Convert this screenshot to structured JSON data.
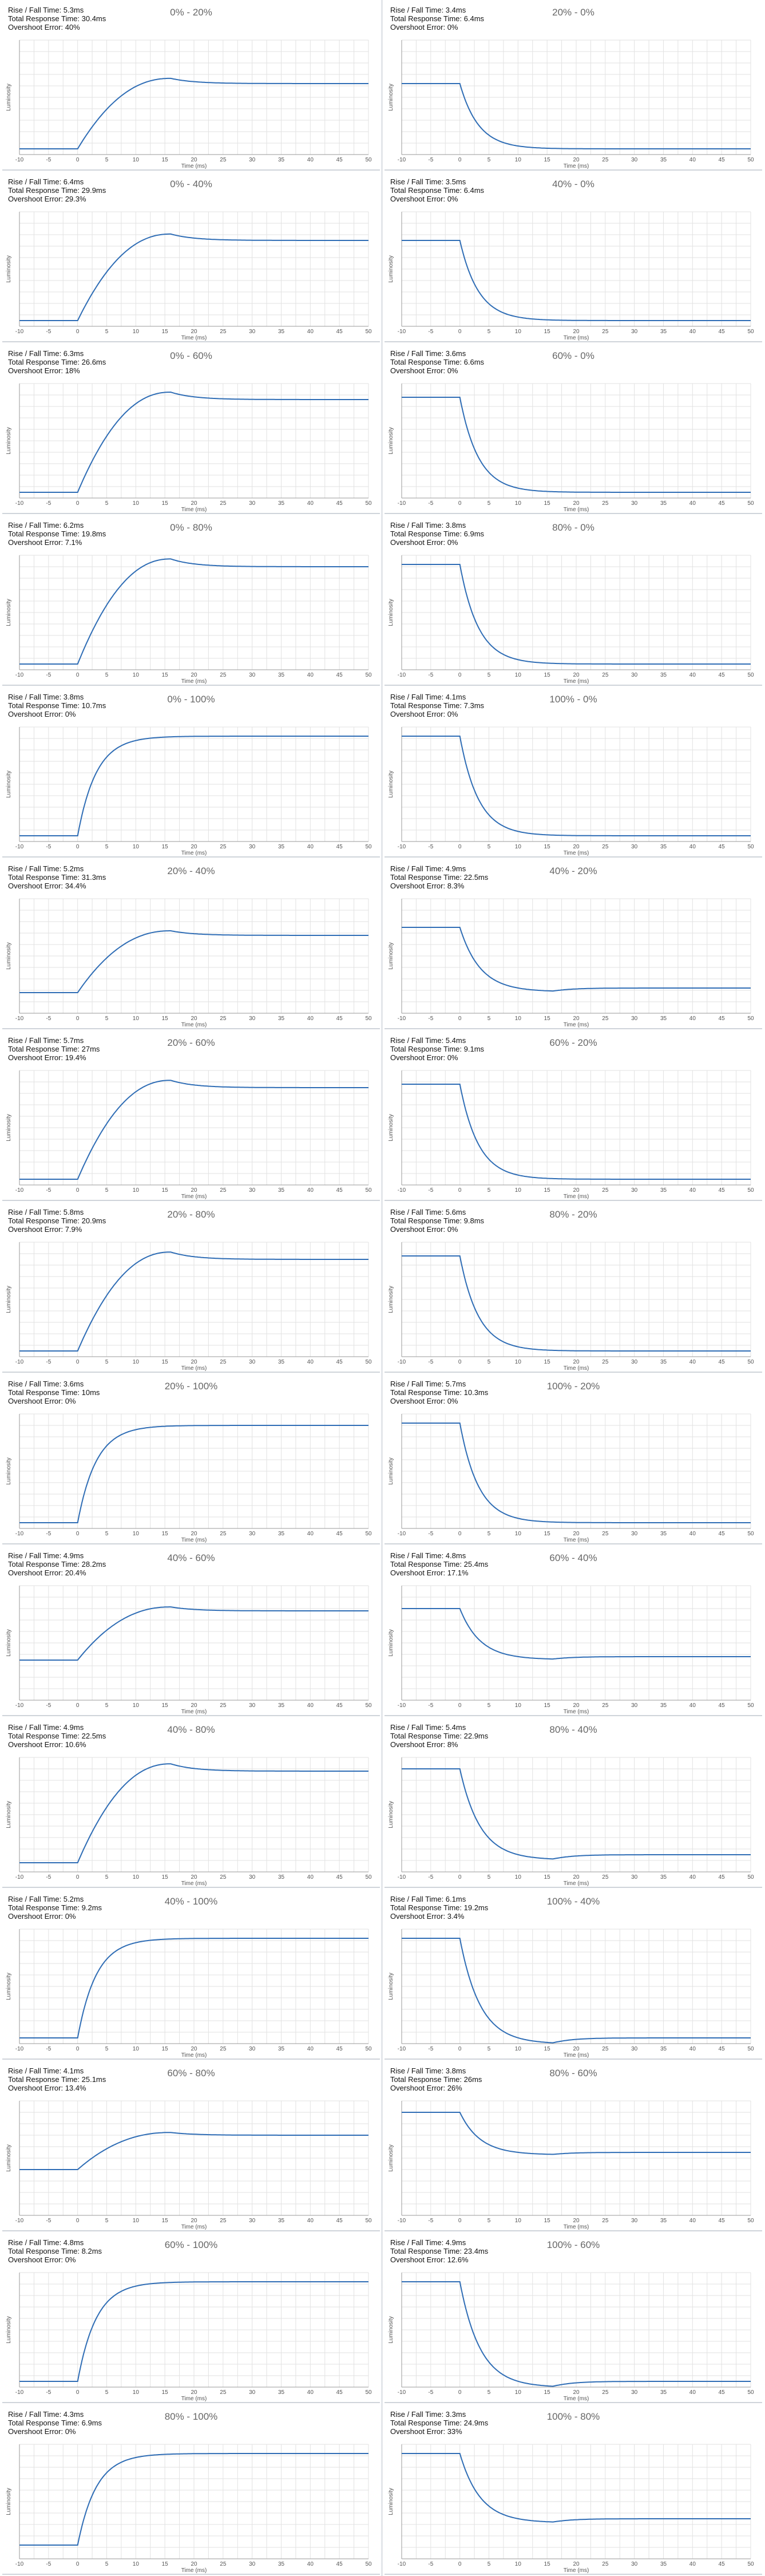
{
  "labels": {
    "rise_prefix": "Rise / Fall Time: ",
    "total_prefix": "Total Response Time: ",
    "overshoot_prefix": "Overshoot Error: "
  },
  "colors": {
    "line": "#2f6db5",
    "grid": "#e2e2e2",
    "axis": "#999999"
  },
  "chart_data": [
    {
      "type": "line",
      "title": "0% - 20%",
      "rise": "5.3ms",
      "total": "30.4ms",
      "overshoot": "40%",
      "start": 5,
      "end": 62,
      "peak": "overshoot-rise",
      "xlabel": "Time (ms)",
      "ylabel": "Luminosity",
      "x_ticks": [
        -10,
        -5,
        0,
        5,
        10,
        15,
        20,
        25,
        30,
        35,
        40,
        45,
        50
      ]
    },
    {
      "type": "line",
      "title": "20% - 0%",
      "rise": "3.4ms",
      "total": "6.4ms",
      "overshoot": "0%",
      "start": 62,
      "end": 5,
      "peak": "none",
      "xlabel": "Time (ms)",
      "ylabel": "Luminosity",
      "x_ticks": [
        -10,
        -5,
        0,
        5,
        10,
        15,
        20,
        25,
        30,
        35,
        40,
        45,
        50
      ]
    },
    {
      "type": "line",
      "title": "0% - 40%",
      "rise": "6.4ms",
      "total": "29.9ms",
      "overshoot": "29.3%",
      "start": 5,
      "end": 75,
      "peak": "overshoot-rise",
      "xlabel": "Time (ms)",
      "ylabel": "Luminosity",
      "x_ticks": [
        -10,
        -5,
        0,
        5,
        10,
        15,
        20,
        25,
        30,
        35,
        40,
        45,
        50
      ]
    },
    {
      "type": "line",
      "title": "40% - 0%",
      "rise": "3.5ms",
      "total": "6.4ms",
      "overshoot": "0%",
      "start": 75,
      "end": 5,
      "peak": "none",
      "xlabel": "Time (ms)",
      "ylabel": "Luminosity",
      "x_ticks": [
        -10,
        -5,
        0,
        5,
        10,
        15,
        20,
        25,
        30,
        35,
        40,
        45,
        50
      ]
    },
    {
      "type": "line",
      "title": "0% - 60%",
      "rise": "6.3ms",
      "total": "26.6ms",
      "overshoot": "18%",
      "start": 5,
      "end": 86,
      "peak": "overshoot-rise",
      "xlabel": "Time (ms)",
      "ylabel": "Luminosity",
      "x_ticks": [
        -10,
        -5,
        0,
        5,
        10,
        15,
        20,
        25,
        30,
        35,
        40,
        45,
        50
      ]
    },
    {
      "type": "line",
      "title": "60% - 0%",
      "rise": "3.6ms",
      "total": "6.6ms",
      "overshoot": "0%",
      "start": 88,
      "end": 5,
      "peak": "none",
      "xlabel": "Time (ms)",
      "ylabel": "Luminosity",
      "x_ticks": [
        -10,
        -5,
        0,
        5,
        10,
        15,
        20,
        25,
        30,
        35,
        40,
        45,
        50
      ]
    },
    {
      "type": "line",
      "title": "0% - 80%",
      "rise": "6.2ms",
      "total": "19.8ms",
      "overshoot": "7.1%",
      "start": 5,
      "end": 90,
      "peak": "overshoot-rise",
      "xlabel": "Time (ms)",
      "ylabel": "Luminosity",
      "x_ticks": [
        -10,
        -5,
        0,
        5,
        10,
        15,
        20,
        25,
        30,
        35,
        40,
        45,
        50
      ]
    },
    {
      "type": "line",
      "title": "80% - 0%",
      "rise": "3.8ms",
      "total": "6.9ms",
      "overshoot": "0%",
      "start": 92,
      "end": 5,
      "peak": "none",
      "xlabel": "Time (ms)",
      "ylabel": "Luminosity",
      "x_ticks": [
        -10,
        -5,
        0,
        5,
        10,
        15,
        20,
        25,
        30,
        35,
        40,
        45,
        50
      ]
    },
    {
      "type": "line",
      "title": "0% - 100%",
      "rise": "3.8ms",
      "total": "10.7ms",
      "overshoot": "0%",
      "start": 5,
      "end": 92,
      "peak": "none",
      "xlabel": "Time (ms)",
      "ylabel": "Luminosity",
      "x_ticks": [
        -10,
        -5,
        0,
        5,
        10,
        15,
        20,
        25,
        30,
        35,
        40,
        45,
        50
      ]
    },
    {
      "type": "line",
      "title": "100% - 0%",
      "rise": "4.1ms",
      "total": "7.3ms",
      "overshoot": "0%",
      "start": 92,
      "end": 5,
      "peak": "none",
      "xlabel": "Time (ms)",
      "ylabel": "Luminosity",
      "x_ticks": [
        -10,
        -5,
        0,
        5,
        10,
        15,
        20,
        25,
        30,
        35,
        40,
        45,
        50
      ]
    },
    {
      "type": "line",
      "title": "20% - 40%",
      "rise": "5.2ms",
      "total": "31.3ms",
      "overshoot": "34.4%",
      "start": 18,
      "end": 68,
      "peak": "overshoot-rise",
      "xlabel": "Time (ms)",
      "ylabel": "Luminosity",
      "x_ticks": [
        -10,
        -5,
        0,
        5,
        10,
        15,
        20,
        25,
        30,
        35,
        40,
        45,
        50
      ]
    },
    {
      "type": "line",
      "title": "40% - 20%",
      "rise": "4.9ms",
      "total": "22.5ms",
      "overshoot": "8.3%",
      "start": 75,
      "end": 22,
      "peak": "undershoot-fall",
      "xlabel": "Time (ms)",
      "ylabel": "Luminosity",
      "x_ticks": [
        -10,
        -5,
        0,
        5,
        10,
        15,
        20,
        25,
        30,
        35,
        40,
        45,
        50
      ]
    },
    {
      "type": "line",
      "title": "20% - 60%",
      "rise": "5.7ms",
      "total": "27ms",
      "overshoot": "19.4%",
      "start": 5,
      "end": 85,
      "peak": "overshoot-rise",
      "xlabel": "Time (ms)",
      "ylabel": "Luminosity",
      "x_ticks": [
        -10,
        -5,
        0,
        5,
        10,
        15,
        20,
        25,
        30,
        35,
        40,
        45,
        50
      ]
    },
    {
      "type": "line",
      "title": "60% - 20%",
      "rise": "5.4ms",
      "total": "9.1ms",
      "overshoot": "0%",
      "start": 88,
      "end": 5,
      "peak": "none",
      "xlabel": "Time (ms)",
      "ylabel": "Luminosity",
      "x_ticks": [
        -10,
        -5,
        0,
        5,
        10,
        15,
        20,
        25,
        30,
        35,
        40,
        45,
        50
      ]
    },
    {
      "type": "line",
      "title": "20% - 80%",
      "rise": "5.8ms",
      "total": "20.9ms",
      "overshoot": "7.9%",
      "start": 5,
      "end": 85,
      "peak": "overshoot-rise",
      "xlabel": "Time (ms)",
      "ylabel": "Luminosity",
      "x_ticks": [
        -10,
        -5,
        0,
        5,
        10,
        15,
        20,
        25,
        30,
        35,
        40,
        45,
        50
      ]
    },
    {
      "type": "line",
      "title": "80% - 20%",
      "rise": "5.6ms",
      "total": "9.8ms",
      "overshoot": "0%",
      "start": 88,
      "end": 5,
      "peak": "none",
      "xlabel": "Time (ms)",
      "ylabel": "Luminosity",
      "x_ticks": [
        -10,
        -5,
        0,
        5,
        10,
        15,
        20,
        25,
        30,
        35,
        40,
        45,
        50
      ]
    },
    {
      "type": "line",
      "title": "20% - 100%",
      "rise": "3.6ms",
      "total": "10ms",
      "overshoot": "0%",
      "start": 5,
      "end": 90,
      "peak": "none",
      "xlabel": "Time (ms)",
      "ylabel": "Luminosity",
      "x_ticks": [
        -10,
        -5,
        0,
        5,
        10,
        15,
        20,
        25,
        30,
        35,
        40,
        45,
        50
      ]
    },
    {
      "type": "line",
      "title": "100% - 20%",
      "rise": "5.7ms",
      "total": "10.3ms",
      "overshoot": "0%",
      "start": 92,
      "end": 5,
      "peak": "none",
      "xlabel": "Time (ms)",
      "ylabel": "Luminosity",
      "x_ticks": [
        -10,
        -5,
        0,
        5,
        10,
        15,
        20,
        25,
        30,
        35,
        40,
        45,
        50
      ]
    },
    {
      "type": "line",
      "title": "40% - 60%",
      "rise": "4.9ms",
      "total": "28.2ms",
      "overshoot": "20.4%",
      "start": 35,
      "end": 78,
      "peak": "overshoot-rise",
      "xlabel": "Time (ms)",
      "ylabel": "Luminosity",
      "x_ticks": [
        -10,
        -5,
        0,
        5,
        10,
        15,
        20,
        25,
        30,
        35,
        40,
        45,
        50
      ]
    },
    {
      "type": "line",
      "title": "60% - 40%",
      "rise": "4.8ms",
      "total": "25.4ms",
      "overshoot": "17.1%",
      "start": 80,
      "end": 38,
      "peak": "undershoot-fall",
      "xlabel": "Time (ms)",
      "ylabel": "Luminosity",
      "x_ticks": [
        -10,
        -5,
        0,
        5,
        10,
        15,
        20,
        25,
        30,
        35,
        40,
        45,
        50
      ]
    },
    {
      "type": "line",
      "title": "40% - 80%",
      "rise": "4.9ms",
      "total": "22.5ms",
      "overshoot": "10.6%",
      "start": 8,
      "end": 88,
      "peak": "overshoot-rise",
      "xlabel": "Time (ms)",
      "ylabel": "Luminosity",
      "x_ticks": [
        -10,
        -5,
        0,
        5,
        10,
        15,
        20,
        25,
        30,
        35,
        40,
        45,
        50
      ]
    },
    {
      "type": "line",
      "title": "80% - 40%",
      "rise": "5.4ms",
      "total": "22.9ms",
      "overshoot": "8%",
      "start": 90,
      "end": 15,
      "peak": "undershoot-fall",
      "xlabel": "Time (ms)",
      "ylabel": "Luminosity",
      "x_ticks": [
        -10,
        -5,
        0,
        5,
        10,
        15,
        20,
        25,
        30,
        35,
        40,
        45,
        50
      ]
    },
    {
      "type": "line",
      "title": "40% - 100%",
      "rise": "5.2ms",
      "total": "9.2ms",
      "overshoot": "0%",
      "start": 5,
      "end": 92,
      "peak": "none",
      "xlabel": "Time (ms)",
      "ylabel": "Luminosity",
      "x_ticks": [
        -10,
        -5,
        0,
        5,
        10,
        15,
        20,
        25,
        30,
        35,
        40,
        45,
        50
      ]
    },
    {
      "type": "line",
      "title": "100% - 40%",
      "rise": "6.1ms",
      "total": "19.2ms",
      "overshoot": "3.4%",
      "start": 92,
      "end": 5,
      "peak": "undershoot-fall",
      "xlabel": "Time (ms)",
      "ylabel": "Luminosity",
      "x_ticks": [
        -10,
        -5,
        0,
        5,
        10,
        15,
        20,
        25,
        30,
        35,
        40,
        45,
        50
      ]
    },
    {
      "type": "line",
      "title": "60% - 80%",
      "rise": "4.1ms",
      "total": "25.1ms",
      "overshoot": "13.4%",
      "start": 40,
      "end": 70,
      "peak": "overshoot-rise",
      "xlabel": "Time (ms)",
      "ylabel": "Luminosity",
      "x_ticks": [
        -10,
        -5,
        0,
        5,
        10,
        15,
        20,
        25,
        30,
        35,
        40,
        45,
        50
      ]
    },
    {
      "type": "line",
      "title": "80% - 60%",
      "rise": "3.8ms",
      "total": "26ms",
      "overshoot": "26%",
      "start": 90,
      "end": 55,
      "peak": "undershoot-fall",
      "xlabel": "Time (ms)",
      "ylabel": "Luminosity",
      "x_ticks": [
        -10,
        -5,
        0,
        5,
        10,
        15,
        20,
        25,
        30,
        35,
        40,
        45,
        50
      ]
    },
    {
      "type": "line",
      "title": "60% - 100%",
      "rise": "4.8ms",
      "total": "8.2ms",
      "overshoot": "0%",
      "start": 5,
      "end": 92,
      "peak": "none",
      "xlabel": "Time (ms)",
      "ylabel": "Luminosity",
      "x_ticks": [
        -10,
        -5,
        0,
        5,
        10,
        15,
        20,
        25,
        30,
        35,
        40,
        45,
        50
      ]
    },
    {
      "type": "line",
      "title": "100% - 60%",
      "rise": "4.9ms",
      "total": "23.4ms",
      "overshoot": "12.6%",
      "start": 92,
      "end": 5,
      "peak": "undershoot-fall",
      "xlabel": "Time (ms)",
      "ylabel": "Luminosity",
      "x_ticks": [
        -10,
        -5,
        0,
        5,
        10,
        15,
        20,
        25,
        30,
        35,
        40,
        45,
        50
      ]
    },
    {
      "type": "line",
      "title": "80% - 100%",
      "rise": "4.3ms",
      "total": "6.9ms",
      "overshoot": "0%",
      "start": 12,
      "end": 92,
      "peak": "none",
      "xlabel": "Time (ms)",
      "ylabel": "Luminosity",
      "x_ticks": [
        -10,
        -5,
        0,
        5,
        10,
        15,
        20,
        25,
        30,
        35,
        40,
        45,
        50
      ]
    },
    {
      "type": "line",
      "title": "100% - 80%",
      "rise": "3.3ms",
      "total": "24.9ms",
      "overshoot": "33%",
      "start": 92,
      "end": 35,
      "peak": "undershoot-fall",
      "xlabel": "Time (ms)",
      "ylabel": "Luminosity",
      "x_ticks": [
        -10,
        -5,
        0,
        5,
        10,
        15,
        20,
        25,
        30,
        35,
        40,
        45,
        50
      ]
    }
  ]
}
